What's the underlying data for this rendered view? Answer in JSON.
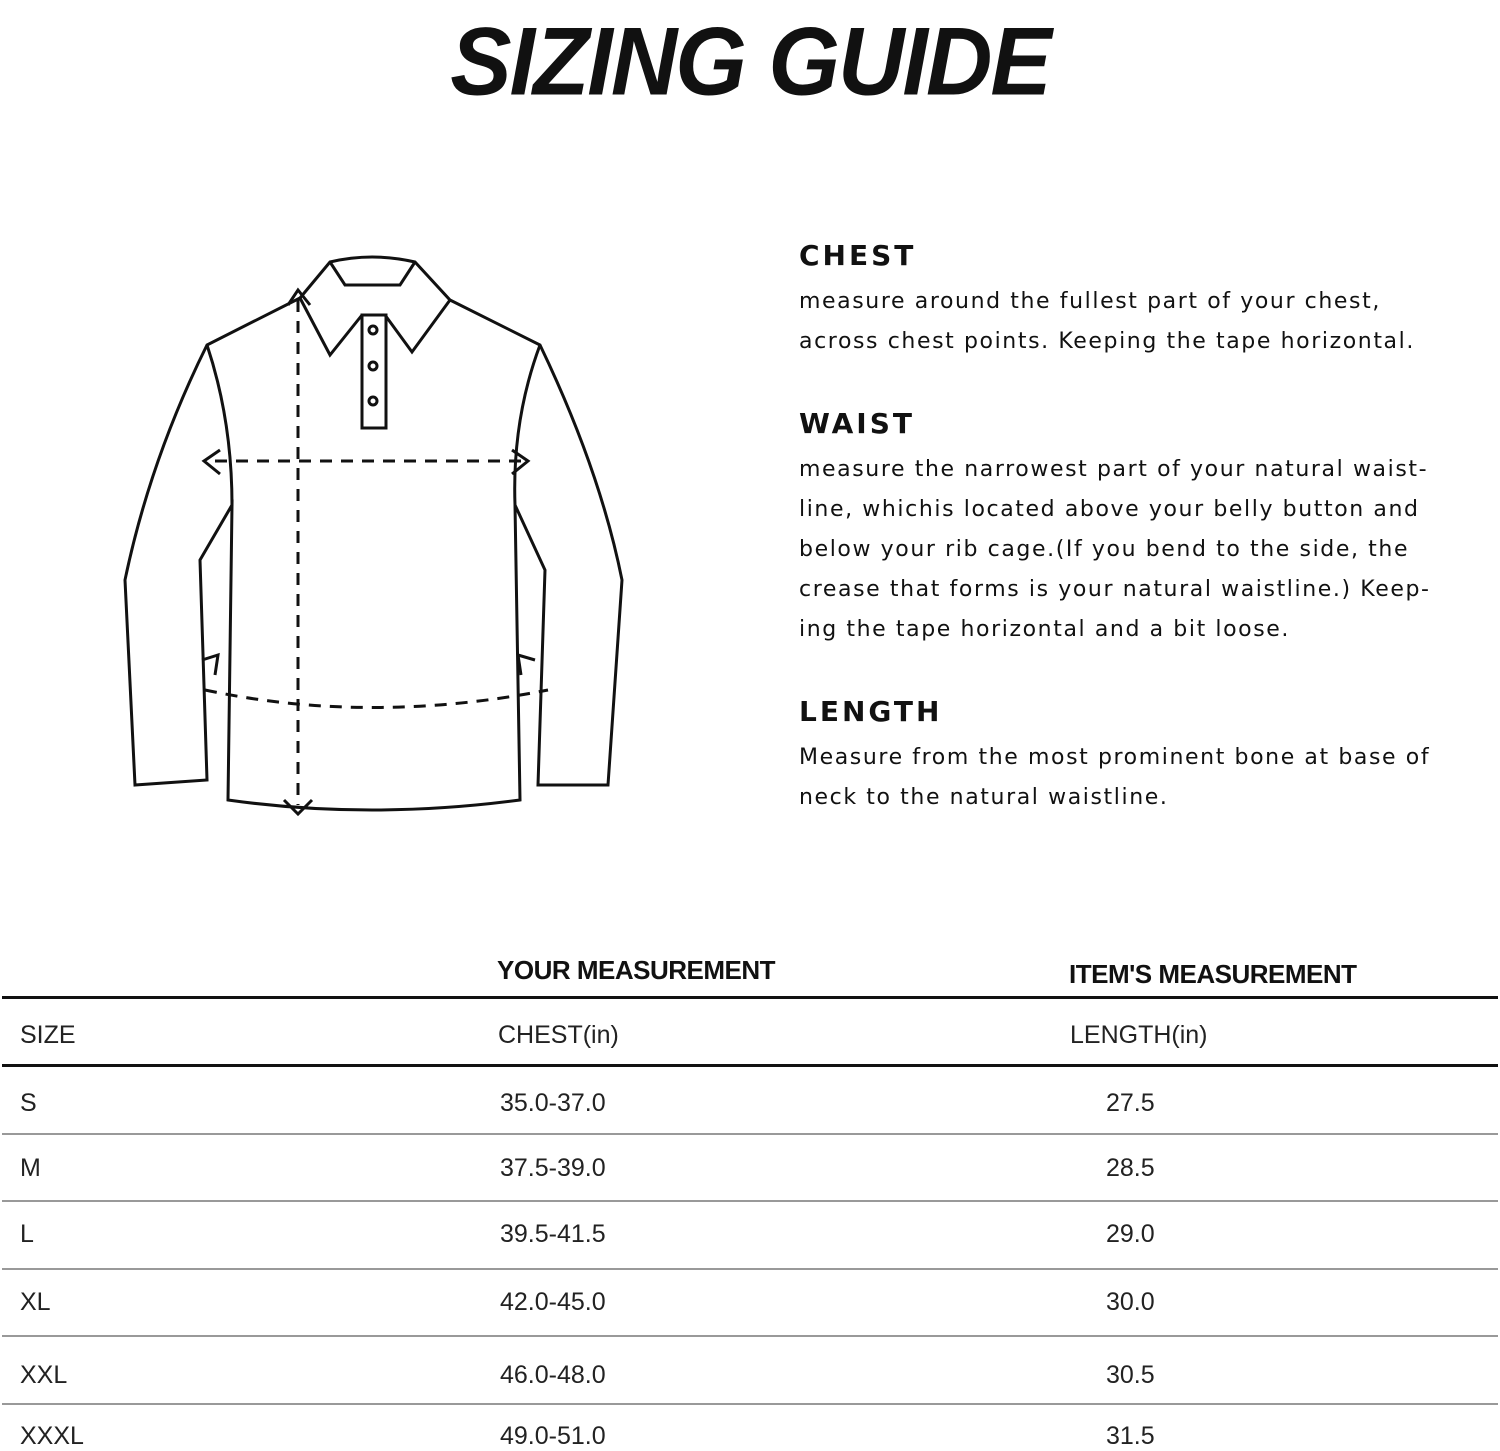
{
  "title": "SIZING GUIDE",
  "sections": [
    {
      "heading": "CHEST",
      "lines": [
        "measure around the fullest part of your chest,",
        "across chest points. Keeping the tape horizontal."
      ]
    },
    {
      "heading": "WAIST",
      "lines": [
        "measure the narrowest part of your natural waist-",
        "line, whichis located above your belly button and",
        "below your rib cage.(If you bend to the side, the",
        "crease that forms is your natural waistline.) Keep-",
        "ing the tape horizontal and a bit loose."
      ]
    },
    {
      "heading": "LENGTH",
      "lines": [
        "Measure from the most prominent bone at base of",
        "neck to the natural waistline."
      ]
    }
  ],
  "table": {
    "group_headers": [
      "YOUR MEASUREMENT",
      "ITEM'S MEASUREMENT"
    ],
    "columns": [
      "SIZE",
      "CHEST(in)",
      "LENGTH(in)"
    ],
    "rows": [
      [
        "S",
        "35.0-37.0",
        "27.5"
      ],
      [
        "M",
        "37.5-39.0",
        "28.5"
      ],
      [
        "L",
        "39.5-41.5",
        "29.0"
      ],
      [
        "XL",
        "42.0-45.0",
        "30.0"
      ],
      [
        "XXL",
        "46.0-48.0",
        "30.5"
      ],
      [
        "XXXL",
        "49.0-51.0",
        "31.5"
      ]
    ]
  }
}
